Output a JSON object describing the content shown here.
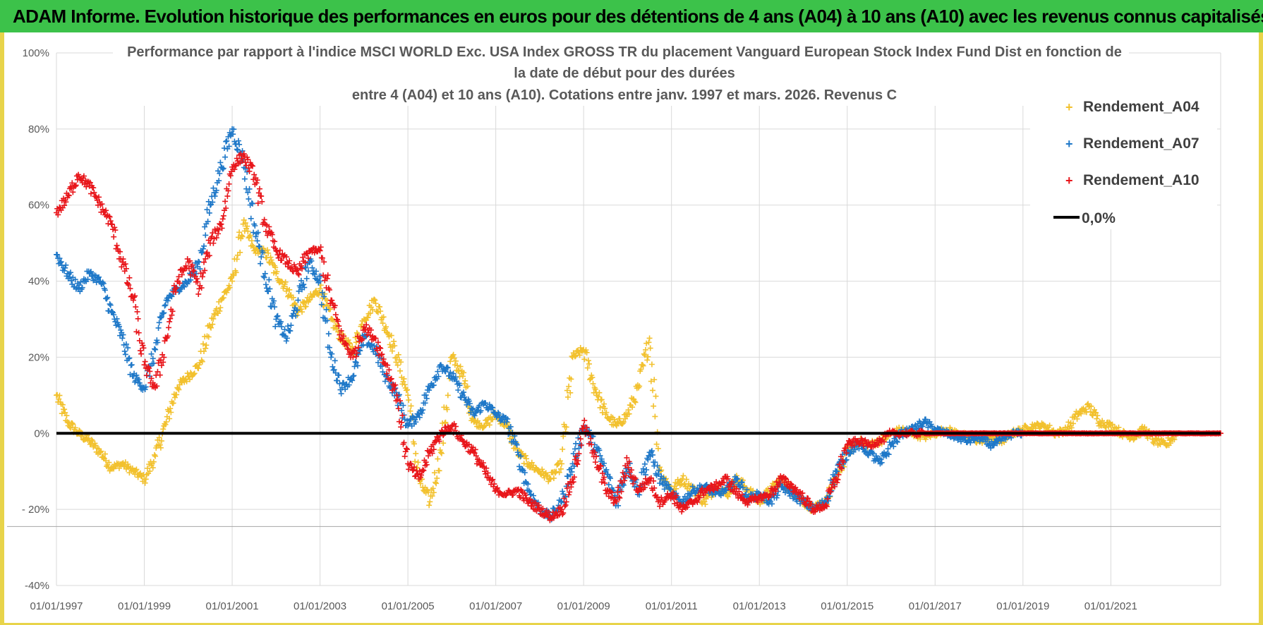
{
  "banner": {
    "title": "ADAM Informe. Evolution historique des performances en euros pour des détentions de 4 ans (A04) à 10 ans (A10) avec les revenus connus capitalisés"
  },
  "colors": {
    "banner_bg": "#3cc24a",
    "frame": "#e8d44a",
    "A04": "#f2c12e",
    "A07": "#1f78c8",
    "A10": "#e8161b",
    "zero": "#000000"
  },
  "chart_data": {
    "type": "scatter",
    "title_lines": [
      "Performance par rapport à l'indice MSCI WORLD Exc. USA Index GROSS TR  du placement Vanguard European Stock Index Fund Dist en fonction de",
      "la date de début pour des durées",
      "entre 4 (A04) et 10 ans (A10). Cotations entre janv. 1997 et mars. 2026. Revenus C"
    ],
    "y_ticks": [
      "100%",
      "80%",
      "60%",
      "40%",
      "20%",
      "0%",
      "- 20%",
      "-40%"
    ],
    "x_ticks": [
      "01/01/1997",
      "01/01/1999",
      "01/01/2001",
      "01/01/2003",
      "01/01/2005",
      "01/01/2007",
      "01/01/2009",
      "01/01/2011",
      "01/01/2013",
      "01/01/2015",
      "01/01/2017",
      "01/01/2019",
      "01/01/2021"
    ],
    "ylim": [
      -40,
      100
    ],
    "xlim": [
      1997.0,
      2023.5
    ],
    "grid": true,
    "legend_position": "top-right",
    "legend": [
      "Rendement_A04",
      "Rendement_A07",
      "Rendement_A10",
      "0,0%"
    ],
    "series": [
      {
        "name": "Rendement_A04",
        "marker": "+",
        "x": [
          1997.0,
          1997.25,
          1997.5,
          1997.75,
          1998.0,
          1998.25,
          1998.5,
          1998.75,
          1999.0,
          1999.25,
          1999.5,
          1999.75,
          2000.0,
          2000.25,
          2000.5,
          2000.75,
          2001.0,
          2001.25,
          2001.5,
          2001.75,
          2002.0,
          2002.25,
          2002.5,
          2002.75,
          2003.0,
          2003.25,
          2003.5,
          2003.75,
          2004.0,
          2004.25,
          2004.5,
          2004.75,
          2005.0,
          2005.25,
          2005.5,
          2005.75,
          2006.0,
          2006.25,
          2006.5,
          2006.75,
          2007.0,
          2007.25,
          2007.5,
          2007.75,
          2008.0,
          2008.25,
          2008.5,
          2008.75,
          2009.0,
          2009.25,
          2009.5,
          2009.75,
          2010.0,
          2010.25,
          2010.5,
          2010.75,
          2011.0,
          2011.25,
          2011.5,
          2011.75,
          2012.0,
          2012.25,
          2012.5,
          2012.75,
          2013.0,
          2013.25,
          2013.5,
          2013.75,
          2014.0,
          2014.25,
          2014.5,
          2014.75,
          2015.0,
          2015.25,
          2015.5,
          2015.75,
          2016.0,
          2016.25,
          2016.5,
          2016.75,
          2017.0,
          2017.25,
          2017.5,
          2017.75,
          2018.0,
          2018.25,
          2018.5,
          2018.75,
          2019.0,
          2019.25,
          2019.5,
          2019.75,
          2020.0,
          2020.25,
          2020.5,
          2020.75,
          2021.0,
          2021.25,
          2021.5,
          2021.75,
          2022.0,
          2022.25,
          2022.5
        ],
        "y": [
          10,
          3,
          0,
          -2,
          -5,
          -9,
          -8,
          -10,
          -12,
          -6,
          3,
          12,
          15,
          18,
          28,
          35,
          40,
          55,
          48,
          48,
          42,
          38,
          32,
          35,
          38,
          30,
          25,
          22,
          30,
          35,
          28,
          20,
          10,
          -12,
          -18,
          -5,
          20,
          15,
          3,
          2,
          5,
          2,
          -5,
          -8,
          -10,
          -12,
          -8,
          20,
          22,
          12,
          5,
          2,
          5,
          12,
          25,
          -10,
          -15,
          -12,
          -15,
          -18,
          -14,
          -16,
          -12,
          -15,
          -18,
          -15,
          -12,
          -15,
          -18,
          -20,
          -18,
          -12,
          -5,
          -2,
          -3,
          -2,
          0,
          1,
          0,
          -1,
          0,
          1,
          0,
          -1,
          -2,
          -1,
          -2,
          0,
          1,
          2,
          2,
          0,
          1,
          5,
          7,
          3,
          2,
          0,
          -1,
          1,
          -2,
          -3,
          0
        ]
      },
      {
        "name": "Rendement_A07",
        "marker": "+",
        "x": [
          1997.0,
          1997.25,
          1997.5,
          1997.75,
          1998.0,
          1998.25,
          1998.5,
          1998.75,
          1999.0,
          1999.25,
          1999.5,
          1999.75,
          2000.0,
          2000.25,
          2000.5,
          2000.75,
          2001.0,
          2001.25,
          2001.5,
          2001.75,
          2002.0,
          2002.25,
          2002.5,
          2002.75,
          2003.0,
          2003.25,
          2003.5,
          2003.75,
          2004.0,
          2004.25,
          2004.5,
          2004.75,
          2005.0,
          2005.25,
          2005.5,
          2005.75,
          2006.0,
          2006.25,
          2006.5,
          2006.75,
          2007.0,
          2007.25,
          2007.5,
          2007.75,
          2008.0,
          2008.25,
          2008.5,
          2008.75,
          2009.0,
          2009.25,
          2009.5,
          2009.75,
          2010.0,
          2010.25,
          2010.5,
          2010.75,
          2011.0,
          2011.25,
          2011.5,
          2011.75,
          2012.0,
          2012.25,
          2012.5,
          2012.75,
          2013.0,
          2013.25,
          2013.5,
          2013.75,
          2014.0,
          2014.25,
          2014.5,
          2014.75,
          2015.0,
          2015.25,
          2015.5,
          2015.75,
          2016.0,
          2016.25,
          2016.5,
          2016.75,
          2017.0,
          2017.25,
          2017.5,
          2017.75,
          2018.0,
          2018.25,
          2018.5,
          2018.75,
          2019.0
        ],
        "y": [
          47,
          42,
          38,
          42,
          40,
          32,
          25,
          15,
          12,
          22,
          35,
          38,
          40,
          45,
          60,
          70,
          80,
          72,
          55,
          42,
          30,
          25,
          35,
          45,
          40,
          20,
          12,
          15,
          25,
          22,
          15,
          10,
          2,
          5,
          12,
          18,
          15,
          10,
          5,
          8,
          5,
          3,
          -5,
          -15,
          -20,
          -22,
          -18,
          -8,
          2,
          -3,
          -10,
          -18,
          -8,
          -15,
          -5,
          -12,
          -16,
          -18,
          -15,
          -14,
          -16,
          -15,
          -12,
          -17,
          -16,
          -18,
          -14,
          -16,
          -18,
          -20,
          -18,
          -10,
          -5,
          -3,
          -5,
          -8,
          -3,
          0,
          1,
          3,
          1,
          0,
          -1,
          -2,
          -1,
          -3,
          -2,
          0,
          0
        ]
      },
      {
        "name": "Rendement_A10",
        "marker": "+",
        "x": [
          1997.0,
          1997.25,
          1997.5,
          1997.75,
          1998.0,
          1998.25,
          1998.5,
          1998.75,
          1999.0,
          1999.25,
          1999.5,
          1999.75,
          2000.0,
          2000.25,
          2000.5,
          2000.75,
          2001.0,
          2001.25,
          2001.5,
          2001.75,
          2002.0,
          2002.25,
          2002.5,
          2002.75,
          2003.0,
          2003.25,
          2003.5,
          2003.75,
          2004.0,
          2004.25,
          2004.5,
          2004.75,
          2005.0,
          2005.25,
          2005.5,
          2005.75,
          2006.0,
          2006.25,
          2006.5,
          2006.75,
          2007.0,
          2007.25,
          2007.5,
          2007.75,
          2008.0,
          2008.25,
          2008.5,
          2008.75,
          2009.0,
          2009.25,
          2009.5,
          2009.75,
          2010.0,
          2010.25,
          2010.5,
          2010.75,
          2011.0,
          2011.25,
          2011.5,
          2011.75,
          2012.0,
          2012.25,
          2012.5,
          2012.75,
          2013.0,
          2013.25,
          2013.5,
          2013.75,
          2014.0,
          2014.25,
          2014.5,
          2014.75,
          2015.0,
          2015.25,
          2015.5,
          2015.75,
          2016.0,
          2016.25,
          2016.5,
          2016.75,
          2017.0,
          2017.25,
          2017.5,
          2017.75,
          2018.0,
          2018.25,
          2018.5,
          2018.75,
          2019.0,
          2019.25,
          2019.5,
          2019.75,
          2020.0,
          2020.25,
          2020.5,
          2020.75,
          2021.0,
          2021.25,
          2021.5,
          2021.75,
          2022.0,
          2022.25,
          2022.5,
          2022.75,
          2023.0,
          2023.25,
          2023.5
        ],
        "y": [
          58,
          62,
          68,
          65,
          60,
          55,
          45,
          35,
          18,
          12,
          25,
          40,
          45,
          38,
          50,
          55,
          70,
          73,
          68,
          55,
          48,
          45,
          42,
          48,
          48,
          35,
          25,
          20,
          28,
          25,
          18,
          10,
          -8,
          -12,
          -5,
          0,
          2,
          -2,
          -5,
          -10,
          -15,
          -16,
          -15,
          -18,
          -20,
          -22,
          -20,
          -12,
          2,
          -5,
          -15,
          -18,
          -8,
          -15,
          -12,
          -18,
          -16,
          -20,
          -18,
          -15,
          -14,
          -12,
          -16,
          -18,
          -17,
          -16,
          -12,
          -14,
          -17,
          -20,
          -19,
          -12,
          -3,
          -2,
          -3,
          -2,
          0,
          0,
          0,
          0,
          0,
          0,
          0,
          0,
          0,
          0,
          0,
          0,
          0,
          0,
          0,
          0,
          0,
          0,
          0,
          0,
          0,
          0,
          0,
          0,
          0,
          0,
          0,
          0,
          0,
          0,
          0
        ]
      }
    ],
    "zero_line": {
      "label": "0,0%",
      "y": 0
    }
  }
}
